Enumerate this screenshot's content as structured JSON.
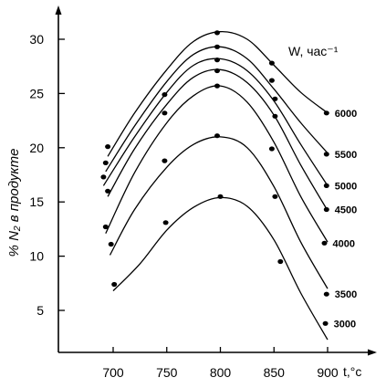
{
  "chart_data": {
    "type": "line",
    "title": "",
    "xlabel": "t,°c",
    "ylabel": "% N₂ в продукте",
    "xlim": [
      655,
      910
    ],
    "ylim": [
      0,
      33
    ],
    "xticks": [
      "700",
      "750",
      "800",
      "850",
      "900"
    ],
    "xtick_values": [
      700,
      750,
      800,
      850,
      900
    ],
    "yticks": [
      "5",
      "10",
      "15",
      "20",
      "25",
      "30"
    ],
    "ytick_values": [
      5,
      10,
      15,
      20,
      25,
      30
    ],
    "legend_title": "W, час⁻¹",
    "grid": false,
    "series": [
      {
        "name": "6000",
        "curve": [
          [
            695,
            19.2
          ],
          [
            720,
            23.2
          ],
          [
            750,
            27.2
          ],
          [
            775,
            29.8
          ],
          [
            800,
            30.7
          ],
          [
            825,
            30.0
          ],
          [
            850,
            27.6
          ],
          [
            875,
            25.1
          ],
          [
            900,
            23.2
          ]
        ],
        "points": [
          [
            695,
            20.1
          ],
          [
            797,
            30.6
          ],
          [
            848,
            27.8
          ],
          [
            899,
            23.2
          ]
        ]
      },
      {
        "name": "5500",
        "curve": [
          [
            693,
            17.8
          ],
          [
            720,
            22.0
          ],
          [
            750,
            26.1
          ],
          [
            775,
            28.6
          ],
          [
            800,
            29.3
          ],
          [
            825,
            28.2
          ],
          [
            850,
            25.4
          ],
          [
            875,
            22.3
          ],
          [
            900,
            19.5
          ]
        ],
        "points": [
          [
            693,
            18.6
          ],
          [
            797,
            29.3
          ],
          [
            848,
            26.2
          ],
          [
            899,
            19.4
          ]
        ]
      },
      {
        "name": "5000",
        "curve": [
          [
            691,
            16.5
          ],
          [
            720,
            21.0
          ],
          [
            750,
            25.1
          ],
          [
            775,
            27.6
          ],
          [
            800,
            28.2
          ],
          [
            825,
            27.1
          ],
          [
            850,
            24.3
          ],
          [
            875,
            20.3
          ],
          [
            900,
            16.5
          ]
        ],
        "points": [
          [
            691,
            17.3
          ],
          [
            748,
            24.9
          ],
          [
            797,
            28.1
          ],
          [
            851,
            24.5
          ],
          [
            899,
            16.5
          ]
        ]
      },
      {
        "name": "4500",
        "curve": [
          [
            695,
            15.5
          ],
          [
            720,
            19.9
          ],
          [
            750,
            24.0
          ],
          [
            775,
            26.5
          ],
          [
            800,
            27.2
          ],
          [
            825,
            26.0
          ],
          [
            850,
            23.0
          ],
          [
            875,
            18.4
          ],
          [
            900,
            14.2
          ]
        ],
        "points": [
          [
            695,
            16.0
          ],
          [
            748,
            23.2
          ],
          [
            797,
            27.1
          ],
          [
            851,
            22.9
          ],
          [
            899,
            14.3
          ]
        ]
      },
      {
        "name": "4000",
        "curve": [
          [
            693,
            12.1
          ],
          [
            720,
            17.7
          ],
          [
            750,
            22.3
          ],
          [
            775,
            24.8
          ],
          [
            800,
            25.7
          ],
          [
            825,
            24.2
          ],
          [
            850,
            20.5
          ],
          [
            875,
            15.5
          ],
          [
            900,
            11.3
          ]
        ],
        "points": [
          [
            693,
            12.7
          ],
          [
            797,
            25.7
          ],
          [
            848,
            19.9
          ],
          [
            897,
            11.2
          ]
        ]
      },
      {
        "name": "3500",
        "curve": [
          [
            697,
            10.1
          ],
          [
            720,
            14.3
          ],
          [
            750,
            18.2
          ],
          [
            775,
            20.3
          ],
          [
            800,
            21.0
          ],
          [
            825,
            20.0
          ],
          [
            850,
            16.4
          ],
          [
            875,
            11.3
          ],
          [
            900,
            7.0
          ]
        ],
        "points": [
          [
            698,
            11.1
          ],
          [
            748,
            18.8
          ],
          [
            797,
            21.1
          ],
          [
            851,
            15.5
          ],
          [
            856,
            9.5
          ],
          [
            899,
            6.5
          ]
        ]
      },
      {
        "name": "3000",
        "curve": [
          [
            700,
            6.8
          ],
          [
            725,
            9.3
          ],
          [
            750,
            12.4
          ],
          [
            775,
            14.5
          ],
          [
            800,
            15.4
          ],
          [
            825,
            14.6
          ],
          [
            850,
            11.5
          ],
          [
            875,
            6.6
          ],
          [
            900,
            2.3
          ]
        ],
        "points": [
          [
            701,
            7.4
          ],
          [
            749,
            13.1
          ],
          [
            800,
            15.5
          ],
          [
            898,
            3.8
          ]
        ]
      }
    ]
  }
}
